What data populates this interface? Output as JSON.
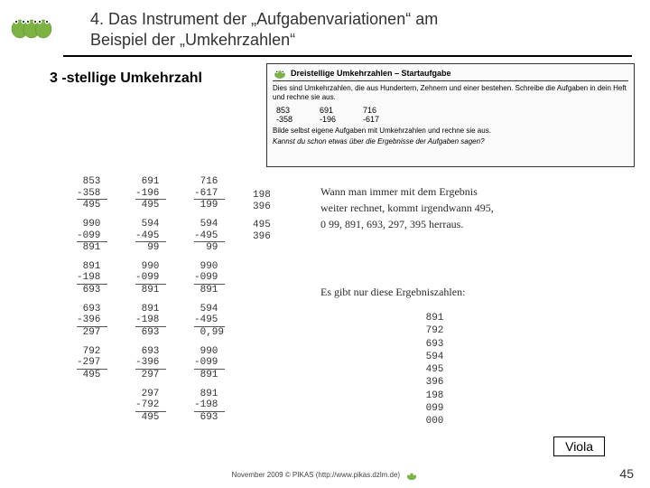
{
  "header": {
    "title_line1": "4. Das Instrument der „Aufgabenvariationen“ am",
    "title_line2": "Beispiel der „Umkehrzahlen“"
  },
  "subtitle": "3 -stellige Umkehrzahl",
  "worksheet": {
    "title": "Dreistellige Umkehrzahlen – Startaufgabe",
    "intro": "Dies sind Umkehrzahlen, die aus Hundertern, Zehnern und einer bestehen. Schreibe die Aufgaben in dein Heft und rechne sie aus.",
    "col1_top": "853",
    "col1_bot": "-358",
    "col2_top": "691",
    "col2_bot": "-196",
    "col3_top": "716",
    "col3_bot": "-617",
    "task2": "Bilde selbst eigene Aufgaben mit Umkehrzahlen und rechne sie aus.",
    "task3": "Kannst du schon etwas über die Ergebnisse der Aufgaben sagen?"
  },
  "calcs": {
    "c1": [
      " 853\n-358\n 495",
      " 990\n-099\n 891",
      " 891\n-198\n 693",
      " 693\n-396\n 297",
      " 792\n-297\n 495"
    ],
    "c2": [
      " 691\n-196\n 495",
      " 594\n-495\n  99",
      " 990\n-099\n 891",
      " 891\n-198\n 693",
      " 693\n-396\n 297",
      " 297\n-792\n 495"
    ],
    "c3": [
      " 716\n-617\n 199",
      " 594\n-495\n  99",
      " 990\n-099\n 891",
      " 594\n-495\n 0,99",
      " 990\n-099\n 891",
      " 891\n-198\n 693"
    ],
    "c4": [
      "198\n396",
      "495\n396"
    ]
  },
  "handnote1_l1": "Wann man immer mit dem Ergebnis",
  "handnote1_l2": "weiter rechnet, kommt irgendwann 495,",
  "handnote1_l3": "0 99, 891, 693, 297, 395 herraus.",
  "handnote2": "Es gibt nur diese Ergebniszahlen:",
  "results": " 891\n 792\n 693\n 594\n 495\n 396\n 198\n 099\n 000",
  "viola": "Viola",
  "footer": "November 2009 © PIKAS (http://www.pikas.dzlm.de)",
  "page": "45",
  "colors": {
    "frog": "#7cb342",
    "title": "#333333",
    "border": "#000000"
  }
}
